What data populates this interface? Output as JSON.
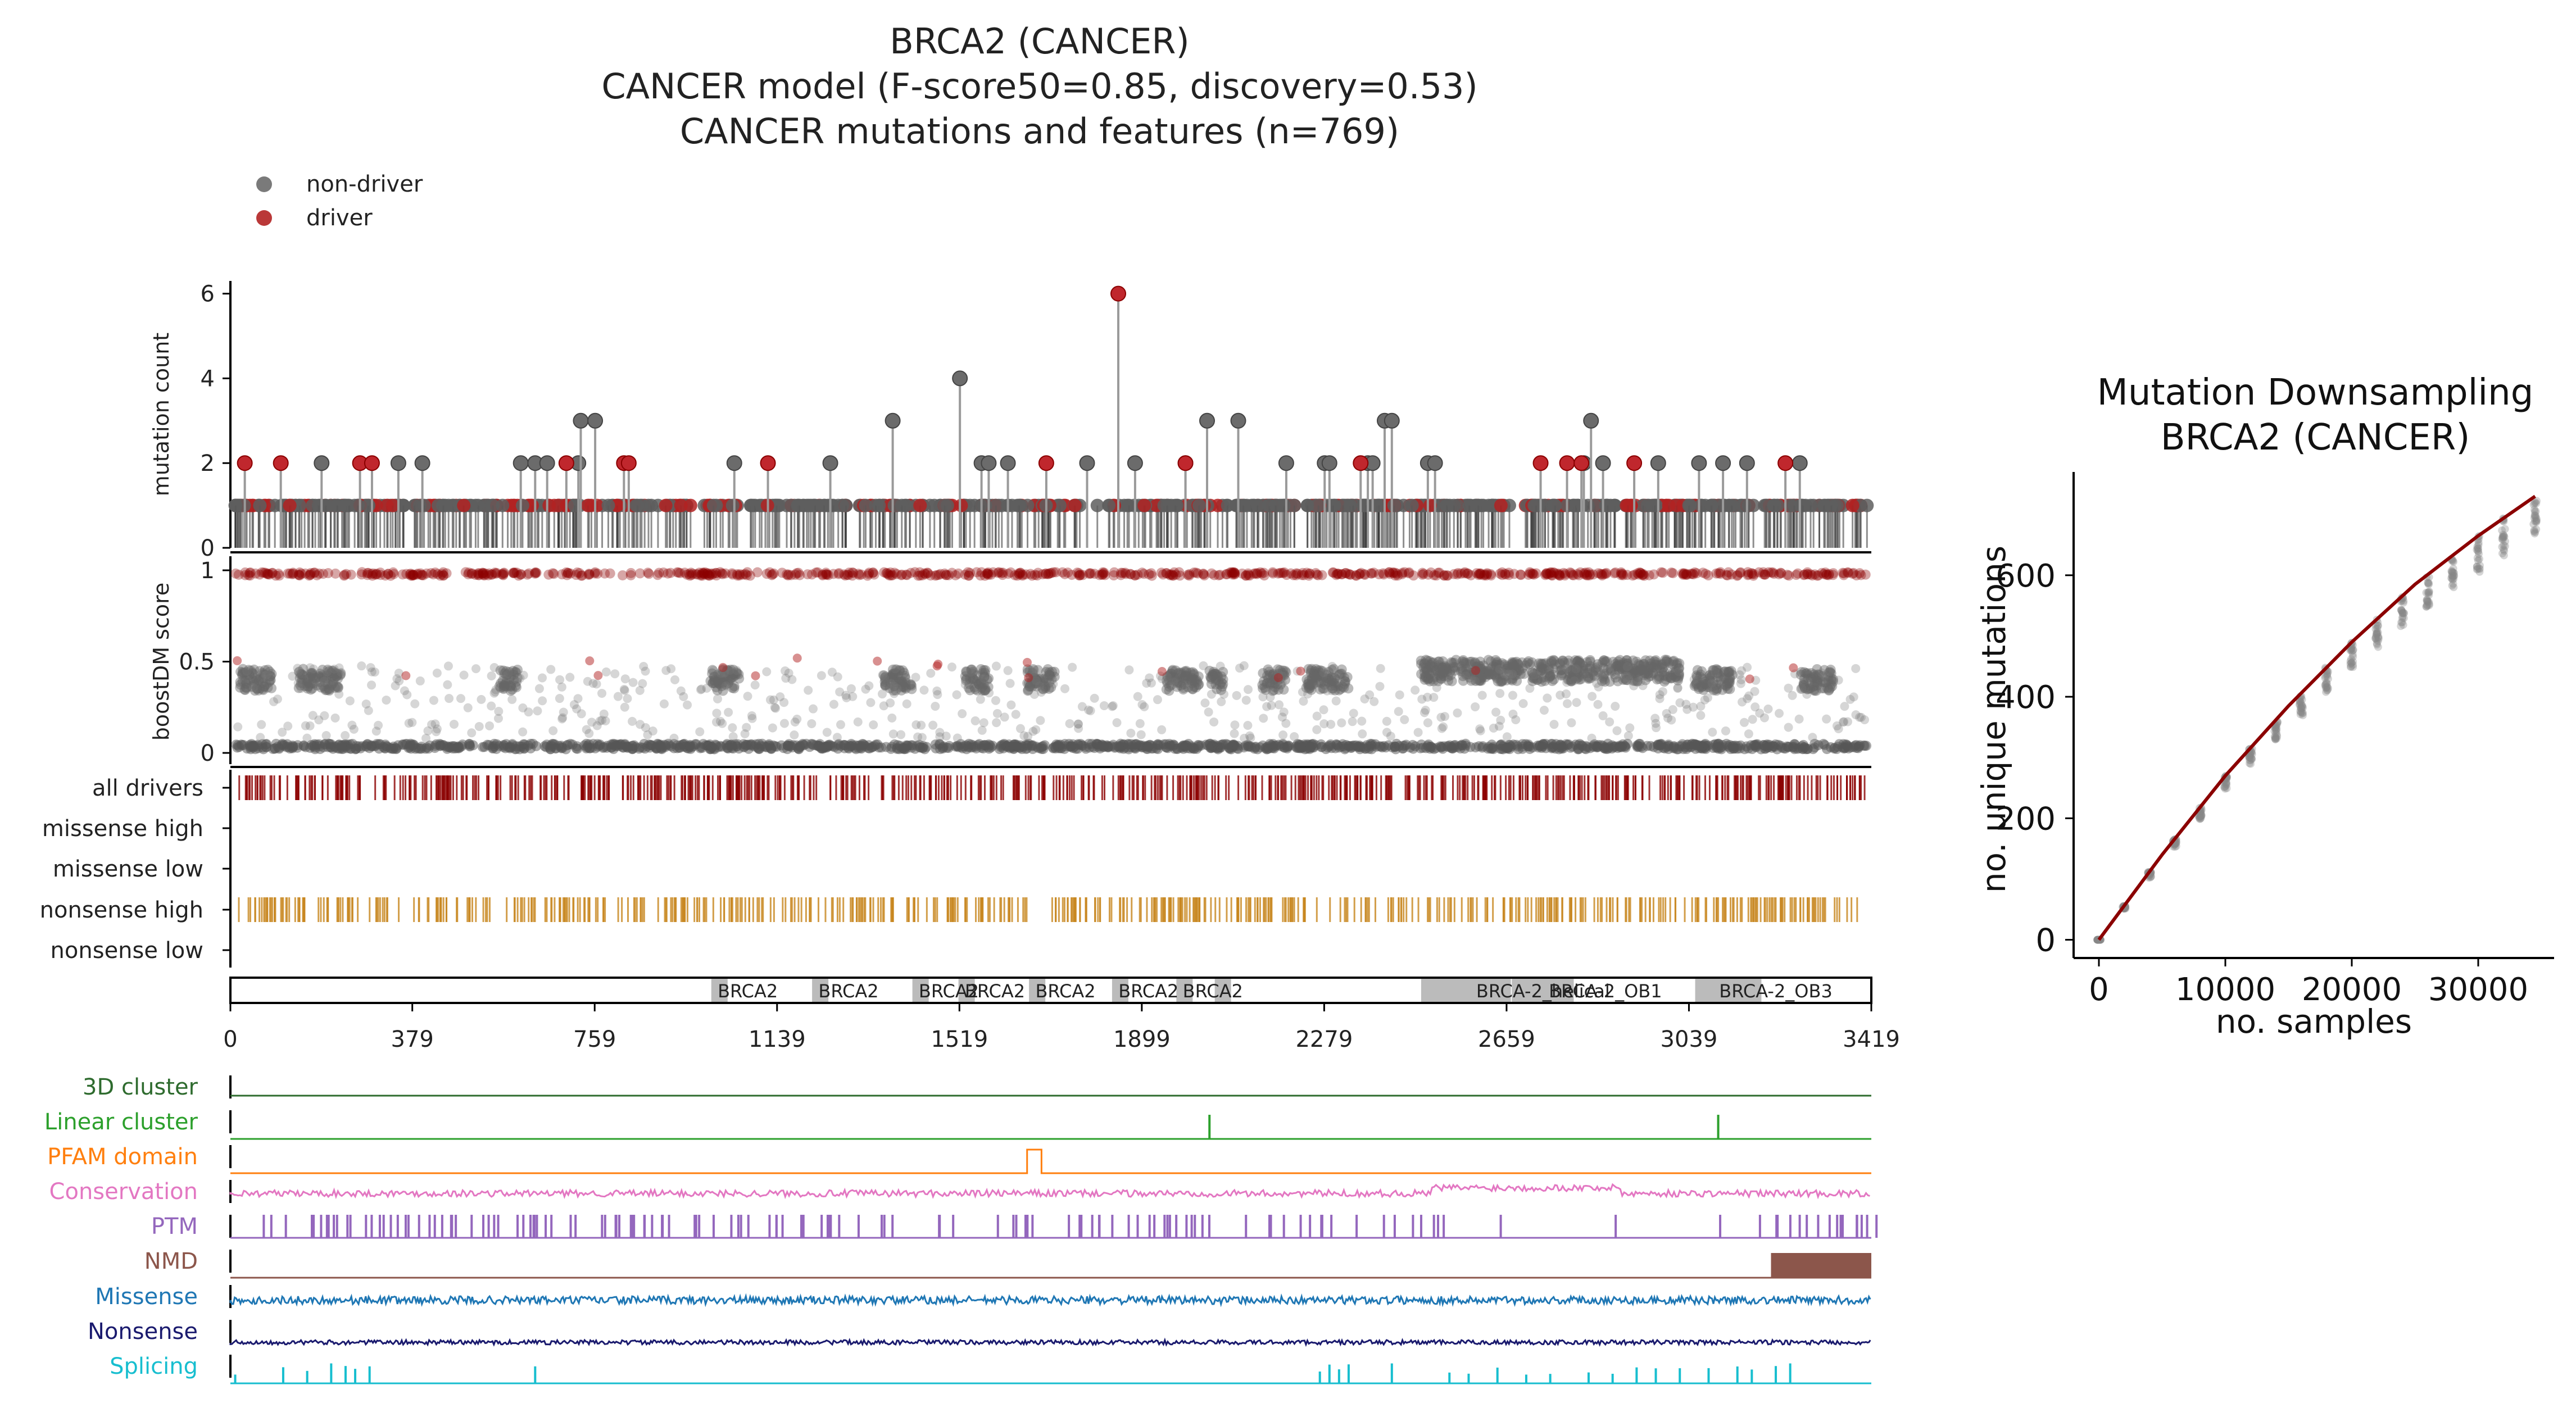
{
  "title_lines": [
    "BRCA2 (CANCER)",
    "CANCER model (F-score50=0.85, discovery=0.53)",
    "CANCER mutations and features (n=769)"
  ],
  "legend": [
    {
      "label": "non-driver",
      "color": "#6b6b6b"
    },
    {
      "label": "driver",
      "color": "#b22222"
    }
  ],
  "colors": {
    "driver": "#8b0000",
    "nondriver": "#666666",
    "nonsense": "#c8861e",
    "pfam": "#bbbbbb",
    "fit": "#8b0000"
  },
  "chart_data": [
    {
      "type": "scatter",
      "title": "BRCA2 (CANCER)",
      "panel": "lollipop",
      "ylabel": "mutation count",
      "ylim": [
        0,
        6.3
      ],
      "yticks": [
        0,
        2,
        4,
        6
      ],
      "xlim": [
        0,
        3419
      ],
      "xticks": [
        0,
        379,
        759,
        1139,
        1519,
        1899,
        2279,
        2659,
        3039,
        3419
      ],
      "driver_peaks": [
        [
          30,
          2
        ],
        [
          105,
          2
        ],
        [
          270,
          2
        ],
        [
          295,
          2
        ],
        [
          700,
          2
        ],
        [
          820,
          2
        ],
        [
          830,
          2
        ],
        [
          1120,
          2
        ],
        [
          1700,
          2
        ],
        [
          1850,
          6
        ],
        [
          1990,
          2
        ],
        [
          2355,
          2
        ],
        [
          2730,
          2
        ],
        [
          2785,
          2
        ],
        [
          2815,
          2
        ],
        [
          2925,
          2
        ],
        [
          3240,
          2
        ]
      ],
      "nondriver_peaks": [
        [
          190,
          2
        ],
        [
          350,
          2
        ],
        [
          400,
          2
        ],
        [
          605,
          2
        ],
        [
          635,
          2
        ],
        [
          660,
          2
        ],
        [
          725,
          2
        ],
        [
          730,
          3
        ],
        [
          760,
          3
        ],
        [
          1050,
          2
        ],
        [
          1250,
          2
        ],
        [
          1380,
          3
        ],
        [
          1520,
          4
        ],
        [
          1565,
          2
        ],
        [
          1580,
          2
        ],
        [
          1620,
          2
        ],
        [
          1785,
          2
        ],
        [
          1885,
          2
        ],
        [
          1990,
          2
        ],
        [
          2035,
          3
        ],
        [
          2100,
          3
        ],
        [
          2200,
          2
        ],
        [
          2280,
          2
        ],
        [
          2290,
          2
        ],
        [
          2370,
          2
        ],
        [
          2380,
          2
        ],
        [
          2405,
          3
        ],
        [
          2420,
          3
        ],
        [
          2495,
          2
        ],
        [
          2510,
          2
        ],
        [
          2820,
          2
        ],
        [
          2835,
          3
        ],
        [
          2860,
          2
        ],
        [
          2975,
          2
        ],
        [
          3060,
          2
        ],
        [
          3110,
          2
        ],
        [
          3160,
          2
        ],
        [
          3270,
          2
        ]
      ]
    },
    {
      "type": "scatter",
      "panel": "boostDM score",
      "ylabel": "boostDM score",
      "ylim": [
        0,
        1
      ],
      "yticks": [
        0,
        0.5,
        1
      ],
      "driver_score": 0.98,
      "nondriver_clusters": [
        [
          20,
          90,
          0.4
        ],
        [
          140,
          230,
          0.4
        ],
        [
          560,
          600,
          0.4
        ],
        [
          1000,
          1060,
          0.4
        ],
        [
          1360,
          1420,
          0.4
        ],
        [
          1530,
          1580,
          0.4
        ],
        [
          1660,
          1720,
          0.4
        ],
        [
          1950,
          2020,
          0.4
        ],
        [
          2040,
          2070,
          0.4
        ],
        [
          2150,
          2200,
          0.4
        ],
        [
          2240,
          2330,
          0.4
        ],
        [
          2480,
          2760,
          0.45
        ],
        [
          2770,
          3020,
          0.45
        ],
        [
          3050,
          3130,
          0.4
        ],
        [
          3270,
          3340,
          0.4
        ]
      ]
    },
    {
      "type": "table",
      "panel": "mutation tracks",
      "rows": [
        "all drivers",
        "missense high",
        "missense low",
        "nonsense high",
        "nonsense low"
      ]
    },
    {
      "type": "bar",
      "panel": "pfam domains",
      "domains": [
        {
          "label": "BRCA2",
          "start": 1002,
          "end": 1036
        },
        {
          "label": "BRCA2",
          "start": 1212,
          "end": 1246
        },
        {
          "label": "BRCA2",
          "start": 1421,
          "end": 1455
        },
        {
          "label": "BRCA2",
          "start": 1517,
          "end": 1551
        },
        {
          "label": "BRCA2",
          "start": 1664,
          "end": 1698
        },
        {
          "label": "BRCA2",
          "start": 1837,
          "end": 1871
        },
        {
          "label": "BRCA2",
          "start": 1971,
          "end": 2005
        },
        {
          "label": "BRCA2",
          "start": 2051,
          "end": 2085
        },
        {
          "label": "BRCA-2_helical",
          "start": 2481,
          "end": 2668
        },
        {
          "label": "BRCA-2_OB1",
          "start": 2670,
          "end": 2799
        },
        {
          "label": "BRCA-2_OB3",
          "start": 3052,
          "end": 3190
        }
      ],
      "domain_text": [
        {
          "text": "BRCA2",
          "x": 1078
        },
        {
          "text": "BRCA2",
          "x": 1288
        },
        {
          "text": "BRCA2",
          "x": 1497
        },
        {
          "text": "BRCA2",
          "x": 1593
        },
        {
          "text": "BRCA2",
          "x": 1740
        },
        {
          "text": "BRCA2",
          "x": 1913
        },
        {
          "text": "BRCA2",
          "x": 2047
        },
        {
          "text": "BRCA-2_helical",
          "x": 2735
        },
        {
          "text": "BRCA-2_OB1",
          "x": 2865
        },
        {
          "text": "BRCA-2_OB3",
          "x": 3220
        }
      ]
    },
    {
      "type": "line",
      "panel": "features",
      "tracks": [
        {
          "label": "3D cluster",
          "color": "#2e6b2e"
        },
        {
          "label": "Linear cluster",
          "color": "#2ca02c"
        },
        {
          "label": "PFAM domain",
          "color": "#ff7f0e"
        },
        {
          "label": "Conservation",
          "color": "#e377c2"
        },
        {
          "label": "PTM",
          "color": "#9467bd"
        },
        {
          "label": "NMD",
          "color": "#8c564b"
        },
        {
          "label": "Missense",
          "color": "#1f77b4"
        },
        {
          "label": "Nonsense",
          "color": "#1a1a6e"
        },
        {
          "label": "Splicing",
          "color": "#17becf"
        }
      ],
      "linear_cluster_sites": [
        2040,
        3100
      ],
      "pfam_bump": [
        1660,
        1690
      ],
      "nmd_region": [
        3210,
        3419
      ],
      "splicing_sites": [
        10,
        110,
        160,
        210,
        240,
        260,
        290,
        635,
        2270,
        2290,
        2310,
        2330,
        2420,
        2540,
        2580,
        2640,
        2700,
        2750,
        2830,
        2880,
        2930,
        2970,
        3020,
        3080,
        3140,
        3170,
        3220,
        3250
      ]
    },
    {
      "type": "line",
      "title": "Mutation Downsampling\nBRCA2 (CANCER)",
      "xlabel": "no. samples",
      "ylabel": "no. unique mutations",
      "xlim": [
        -2000,
        36000
      ],
      "ylim": [
        -30,
        770
      ],
      "xticks": [
        0,
        10000,
        20000,
        30000
      ],
      "yticks": [
        0,
        200,
        400,
        600
      ],
      "fit_curve": {
        "x": [
          0,
          5000,
          10000,
          15000,
          20000,
          25000,
          30000,
          34500
        ],
        "y": [
          0,
          140,
          270,
          385,
          490,
          585,
          665,
          730
        ]
      },
      "samples_x": [
        0,
        2000,
        4000,
        6000,
        8000,
        10000,
        12000,
        14000,
        16000,
        18000,
        20000,
        22000,
        24000,
        26000,
        28000,
        30000,
        32000,
        34500
      ]
    }
  ]
}
